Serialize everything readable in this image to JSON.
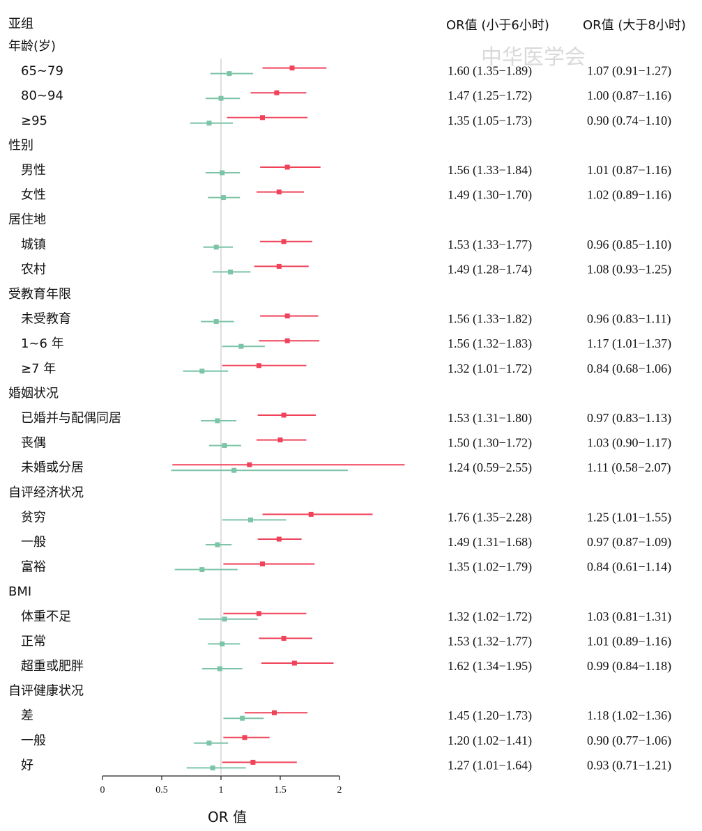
{
  "colors": {
    "lt6": "#f0435a",
    "gt8": "#7cc4a8",
    "ref": "#c8c8c8",
    "axis": "#222222"
  },
  "header": {
    "col1": "OR值 (小于6小时)",
    "col2": "OR值 (大于8小时)",
    "first": "亚组"
  },
  "watermark": "中华医学会",
  "chart_data": {
    "type": "forest",
    "xlabel": "OR 值",
    "xlim": [
      0,
      2
    ],
    "xticks": [
      "0",
      "0.5",
      "1",
      "1.5",
      "2"
    ],
    "reference_line": 1,
    "series": [
      {
        "name": "OR值 (小于6小时)",
        "color": "#f0435a"
      },
      {
        "name": "OR值 (大于8小时)",
        "color": "#7cc4a8"
      }
    ],
    "rows": [
      {
        "kind": "group",
        "label": "年龄(岁)"
      },
      {
        "kind": "item",
        "label": "65~79",
        "lt6": [
          1.6,
          1.35,
          1.89
        ],
        "gt8": [
          1.07,
          0.91,
          1.27
        ],
        "t1": "1.60 (1.35−1.89)",
        "t2": "1.07 (0.91−1.27)"
      },
      {
        "kind": "item",
        "label": "80~94",
        "lt6": [
          1.47,
          1.25,
          1.72
        ],
        "gt8": [
          1.0,
          0.87,
          1.16
        ],
        "t1": "1.47 (1.25−1.72)",
        "t2": "1.00 (0.87−1.16)"
      },
      {
        "kind": "item",
        "label": "≥95",
        "lt6": [
          1.35,
          1.05,
          1.73
        ],
        "gt8": [
          0.9,
          0.74,
          1.1
        ],
        "t1": "1.35 (1.05−1.73)",
        "t2": "0.90 (0.74−1.10)"
      },
      {
        "kind": "group",
        "label": "性别"
      },
      {
        "kind": "item",
        "label": "男性",
        "lt6": [
          1.56,
          1.33,
          1.84
        ],
        "gt8": [
          1.01,
          0.87,
          1.16
        ],
        "t1": "1.56  (1.33−1.84)",
        "t2": "1.01 (0.87−1.16)"
      },
      {
        "kind": "item",
        "label": "女性",
        "lt6": [
          1.49,
          1.3,
          1.7
        ],
        "gt8": [
          1.02,
          0.89,
          1.16
        ],
        "t1": "1.49  (1.30−1.70)",
        "t2": "1.02 (0.89−1.16)"
      },
      {
        "kind": "group",
        "label": "居住地"
      },
      {
        "kind": "item",
        "label": "城镇",
        "lt6": [
          1.53,
          1.33,
          1.77
        ],
        "gt8": [
          0.96,
          0.85,
          1.1
        ],
        "t1": "1.53  (1.33−1.77)",
        "t2": "0.96 (0.85−1.10)"
      },
      {
        "kind": "item",
        "label": "农村",
        "lt6": [
          1.49,
          1.28,
          1.74
        ],
        "gt8": [
          1.08,
          0.93,
          1.25
        ],
        "t1": "1.49  (1.28−1.74)",
        "t2": "1.08 (0.93−1.25)"
      },
      {
        "kind": "group",
        "label": "受教育年限"
      },
      {
        "kind": "item",
        "label": "未受教育",
        "lt6": [
          1.56,
          1.33,
          1.82
        ],
        "gt8": [
          0.96,
          0.83,
          1.11
        ],
        "t1": "1.56  (1.33−1.82)",
        "t2": "0.96 (0.83−1.11)"
      },
      {
        "kind": "item",
        "label": "1~6 年",
        "lt6": [
          1.56,
          1.32,
          1.83
        ],
        "gt8": [
          1.17,
          1.01,
          1.37
        ],
        "t1": "1.56  (1.32−1.83)",
        "t2": "1.17 (1.01−1.37)"
      },
      {
        "kind": "item",
        "label": "≥7 年",
        "lt6": [
          1.32,
          1.01,
          1.72
        ],
        "gt8": [
          0.84,
          0.68,
          1.06
        ],
        "t1": "1.32  (1.01−1.72)",
        "t2": "0.84 (0.68−1.06)"
      },
      {
        "kind": "group",
        "label": "婚姻状况"
      },
      {
        "kind": "item",
        "label": "已婚并与配偶同居",
        "lt6": [
          1.53,
          1.31,
          1.8
        ],
        "gt8": [
          0.97,
          0.83,
          1.13
        ],
        "t1": "1.53  (1.31−1.80)",
        "t2": "0.97 (0.83−1.13)"
      },
      {
        "kind": "item",
        "label": "丧偶",
        "lt6": [
          1.5,
          1.3,
          1.72
        ],
        "gt8": [
          1.03,
          0.9,
          1.17
        ],
        "t1": "1.50  (1.30−1.72)",
        "t2": "1.03 (0.90−1.17)"
      },
      {
        "kind": "item",
        "label": "未婚或分居",
        "lt6": [
          1.24,
          0.59,
          2.55
        ],
        "gt8": [
          1.11,
          0.58,
          2.07
        ],
        "t1": "1.24  (0.59−2.55)",
        "t2": "1.11 (0.58−2.07)"
      },
      {
        "kind": "group",
        "label": "自评经济状况"
      },
      {
        "kind": "item",
        "label": "贫穷",
        "lt6": [
          1.76,
          1.35,
          2.28
        ],
        "gt8": [
          1.25,
          1.01,
          1.55
        ],
        "t1": "1.76  (1.35−2.28)",
        "t2": "1.25 (1.01−1.55)"
      },
      {
        "kind": "item",
        "label": "一般",
        "lt6": [
          1.49,
          1.31,
          1.68
        ],
        "gt8": [
          0.97,
          0.87,
          1.09
        ],
        "t1": "1.49  (1.31−1.68)",
        "t2": "0.97 (0.87−1.09)"
      },
      {
        "kind": "item",
        "label": "富裕",
        "lt6": [
          1.35,
          1.02,
          1.79
        ],
        "gt8": [
          0.84,
          0.61,
          1.14
        ],
        "t1": "1.35  (1.02−1.79)",
        "t2": "0.84 (0.61−1.14)"
      },
      {
        "kind": "group",
        "label": "BMI"
      },
      {
        "kind": "item",
        "label": "体重不足",
        "lt6": [
          1.32,
          1.02,
          1.72
        ],
        "gt8": [
          1.03,
          0.81,
          1.31
        ],
        "t1": "1.32  (1.02−1.72)",
        "t2": "1.03 (0.81−1.31)"
      },
      {
        "kind": "item",
        "label": "正常",
        "lt6": [
          1.53,
          1.32,
          1.77
        ],
        "gt8": [
          1.01,
          0.89,
          1.16
        ],
        "t1": "1.53  (1.32−1.77)",
        "t2": "1.01 (0.89−1.16)"
      },
      {
        "kind": "item",
        "label": "超重或肥胖",
        "lt6": [
          1.62,
          1.34,
          1.95
        ],
        "gt8": [
          0.99,
          0.84,
          1.18
        ],
        "t1": "1.62  (1.34−1.95)",
        "t2": "0.99 (0.84−1.18)"
      },
      {
        "kind": "group",
        "label": "自评健康状况"
      },
      {
        "kind": "item",
        "label": "差",
        "lt6": [
          1.45,
          1.2,
          1.73
        ],
        "gt8": [
          1.18,
          1.02,
          1.36
        ],
        "t1": "1.45  (1.20−1.73)",
        "t2": "1.18 (1.02−1.36)"
      },
      {
        "kind": "item",
        "label": "一般",
        "lt6": [
          1.2,
          1.02,
          1.41
        ],
        "gt8": [
          0.9,
          0.77,
          1.06
        ],
        "t1": "1.20  (1.02−1.41)",
        "t2": "0.90 (0.77−1.06)"
      },
      {
        "kind": "item",
        "label": "好",
        "lt6": [
          1.27,
          1.01,
          1.64
        ],
        "gt8": [
          0.93,
          0.71,
          1.21
        ],
        "t1": "1.27  (1.01−1.64)",
        "t2": "0.93 (0.71−1.21)"
      }
    ]
  }
}
